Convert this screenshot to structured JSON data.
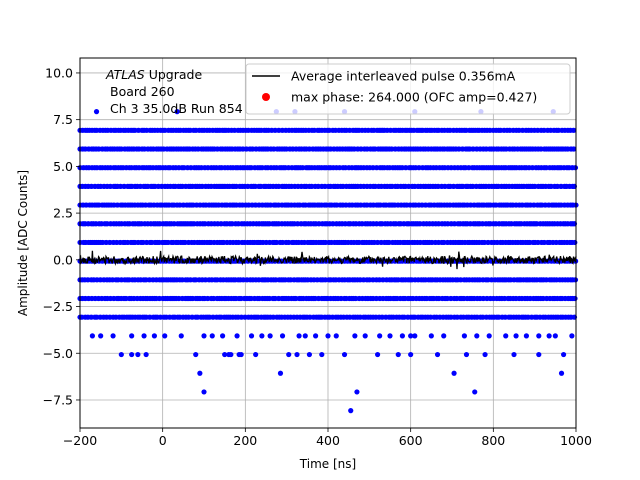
{
  "chart_data": {
    "type": "scatter",
    "xlabel": "Time [ns]",
    "ylabel": "Amplitude [ADC Counts]",
    "xlim": [
      -200,
      1000
    ],
    "ylim": [
      -9,
      10.8
    ],
    "xticks": [
      -200,
      0,
      200,
      400,
      600,
      800,
      1000
    ],
    "xtick_labels": [
      "−200",
      "0",
      "200",
      "400",
      "600",
      "800",
      "1000"
    ],
    "yticks": [
      -7.5,
      -5.0,
      -2.5,
      0.0,
      2.5,
      5.0,
      7.5,
      10.0
    ],
    "ytick_labels": [
      "−7.5",
      "−5.0",
      "−2.5",
      "0.0",
      "2.5",
      "5.0",
      "7.5",
      "10.0"
    ],
    "grid": true,
    "legend_position": "top-right",
    "annotation": {
      "line1_italic": "ATLAS",
      "line1_rest": " Upgrade",
      "line2": "Board 260",
      "line3": "Ch 3 35.0dB  Run 854"
    },
    "series": [
      {
        "name": "Average interleaved pulse 0.356mA",
        "kind": "line",
        "color": "#000000",
        "x_range": [
          -200,
          1000
        ],
        "mean": 0.0,
        "noise_amplitude": 0.2
      },
      {
        "name": "max phase: 264.000 (OFC amp=0.427)",
        "kind": "point",
        "color": "#ff0000",
        "points": []
      },
      {
        "name": "",
        "kind": "scatter",
        "color": "#0000ff",
        "dense_levels": [
          6.93,
          5.93,
          4.93,
          3.93,
          2.93,
          1.93,
          0.93,
          -0.07,
          -1.07,
          -2.07,
          -3.07
        ],
        "sparse_levels": [
          {
            "y": 7.93,
            "x": [
              -160,
              35,
              275,
              320,
              440,
              610,
              770,
              945
            ]
          },
          {
            "y": -4.07,
            "x": [
              -170,
              -150,
              -120,
              -75,
              -45,
              -20,
              5,
              45,
              100,
              120,
              145,
              180,
              215,
              240,
              260,
              290,
              330,
              345,
              370,
              400,
              420,
              465,
              490,
              525,
              550,
              580,
              600,
              610,
              650,
              680,
              730,
              760,
              790,
              830,
              855,
              880,
              910,
              935,
              950,
              990
            ]
          },
          {
            "y": -5.07,
            "x": [
              -100,
              -75,
              -60,
              -40,
              80,
              150,
              160,
              165,
              185,
              190,
              225,
              305,
              325,
              355,
              385,
              440,
              520,
              570,
              600,
              665,
              735,
              780,
              850,
              910,
              970
            ]
          },
          {
            "y": -6.07,
            "x": [
              90,
              285,
              705,
              965
            ]
          },
          {
            "y": -7.07,
            "x": [
              100,
              470,
              755
            ]
          },
          {
            "y": -8.07,
            "x": [
              455
            ]
          }
        ]
      }
    ]
  }
}
